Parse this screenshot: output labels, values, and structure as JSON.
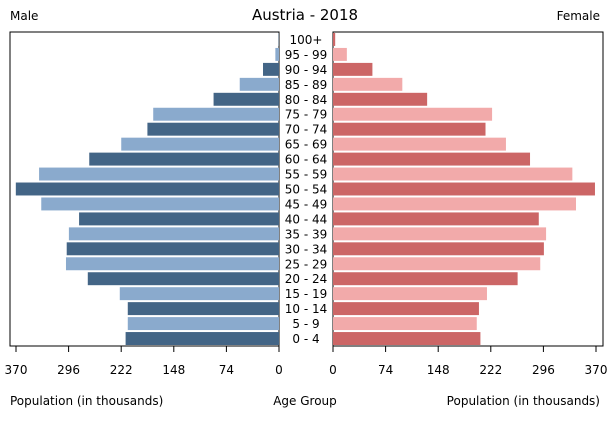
{
  "chart_data": {
    "type": "bar",
    "title": "Austria - 2018",
    "left_label": "Male",
    "right_label": "Female",
    "xlabel_left": "Population (in thousands)",
    "xlabel_center": "Age Group",
    "xlabel_right": "Population (in thousands)",
    "xlim": [
      0,
      370
    ],
    "ticks": [
      "370",
      "296",
      "222",
      "148",
      "74",
      "0"
    ],
    "ticks_right": [
      "0",
      "74",
      "148",
      "222",
      "296",
      "370"
    ],
    "categories": [
      "100+",
      "95 - 99",
      "90 - 94",
      "85 - 89",
      "80 - 84",
      "75 - 79",
      "70 - 74",
      "65 - 69",
      "60 - 64",
      "55 - 59",
      "50 - 54",
      "45 - 49",
      "40 - 44",
      "35 - 39",
      "30 - 34",
      "25 - 29",
      "20 - 24",
      "15 - 19",
      "10 - 14",
      "5 - 9",
      "0 - 4"
    ],
    "series": [
      {
        "name": "Male",
        "values": [
          0.5,
          5,
          22,
          54,
          90,
          173,
          181,
          217,
          261,
          330,
          362,
          327,
          275,
          289,
          292,
          293,
          263,
          219,
          208,
          208,
          211
        ]
      },
      {
        "name": "Female",
        "values": [
          3,
          19,
          54,
          95,
          129,
          218,
          209,
          237,
          270,
          328,
          359,
          333,
          282,
          292,
          289,
          284,
          253,
          211,
          200,
          197,
          202
        ]
      }
    ],
    "colors": {
      "male_light": "#8aaacd",
      "male_dark": "#436586",
      "female_light": "#f2aaaa",
      "female_dark": "#cc6666"
    }
  }
}
